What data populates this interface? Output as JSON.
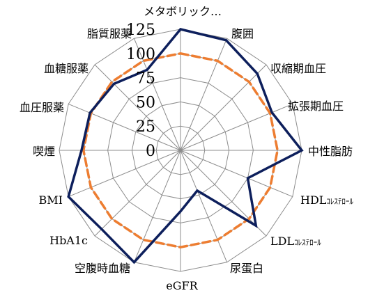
{
  "chart_data": {
    "type": "radar",
    "categories": [
      {
        "label": "メタボリック…",
        "suffix": ""
      },
      {
        "label": "腹囲",
        "suffix": ""
      },
      {
        "label": "収縮期血圧",
        "suffix": ""
      },
      {
        "label": "拡張期血圧",
        "suffix": ""
      },
      {
        "label": "中性脂肪",
        "suffix": ""
      },
      {
        "label": "HDL",
        "suffix": "ｺﾚｽﾃﾛｰﾙ"
      },
      {
        "label": "LDL",
        "suffix": "ｺﾚｽﾃﾛｰﾙ"
      },
      {
        "label": "尿蛋白",
        "suffix": ""
      },
      {
        "label": "eGFR",
        "suffix": ""
      },
      {
        "label": "空腹時血糖",
        "suffix": ""
      },
      {
        "label": "HbA1c",
        "suffix": ""
      },
      {
        "label": "BMI",
        "suffix": ""
      },
      {
        "label": "喫煙",
        "suffix": ""
      },
      {
        "label": "血圧服薬",
        "suffix": ""
      },
      {
        "label": "血糖服薬",
        "suffix": ""
      },
      {
        "label": "脂質服薬",
        "suffix": ""
      }
    ],
    "ticks": [
      "0",
      "25",
      "50",
      "75",
      "100",
      "125"
    ],
    "rmax": 125,
    "series": [
      {
        "color": "#0d1f5c",
        "dash": false,
        "values": [
          125,
          123,
          112,
          102,
          125,
          75,
          110,
          45,
          63,
          125,
          115,
          125,
          102,
          101,
          97,
          90
        ]
      },
      {
        "color": "#ed7d31",
        "dash": true,
        "values": [
          100,
          100,
          100,
          100,
          100,
          100,
          100,
          100,
          100,
          100,
          100,
          100,
          100,
          100,
          100,
          100
        ]
      }
    ],
    "grid": true
  }
}
